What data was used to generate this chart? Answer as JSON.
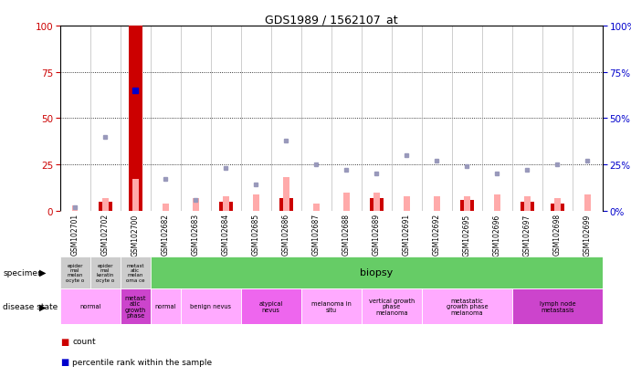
{
  "title": "GDS1989 / 1562107_at",
  "samples": [
    "GSM102701",
    "GSM102702",
    "GSM102700",
    "GSM102682",
    "GSM102683",
    "GSM102684",
    "GSM102685",
    "GSM102686",
    "GSM102687",
    "GSM102688",
    "GSM102689",
    "GSM102691",
    "GSM102692",
    "GSM102695",
    "GSM102696",
    "GSM102697",
    "GSM102698",
    "GSM102699"
  ],
  "count_values": [
    0,
    5,
    100,
    0,
    0,
    5,
    0,
    7,
    0,
    0,
    7,
    0,
    0,
    6,
    0,
    5,
    4,
    0
  ],
  "percentile_rank": [
    null,
    null,
    65,
    null,
    null,
    null,
    null,
    null,
    null,
    null,
    null,
    null,
    null,
    null,
    null,
    null,
    null,
    null
  ],
  "value_absent": [
    3,
    7,
    17,
    4,
    7,
    8,
    9,
    18,
    4,
    10,
    10,
    8,
    8,
    8,
    9,
    8,
    7,
    9
  ],
  "rank_absent": [
    2,
    40,
    null,
    17,
    6,
    23,
    14,
    38,
    25,
    22,
    20,
    30,
    27,
    24,
    20,
    22,
    25,
    27
  ],
  "disease_groups": [
    {
      "label": "normal",
      "start": 0,
      "end": 1,
      "color": "#ffaaff"
    },
    {
      "label": "metast\natic\ngrowth\nphase",
      "start": 2,
      "end": 2,
      "color": "#cc44cc"
    },
    {
      "label": "normal",
      "start": 3,
      "end": 3,
      "color": "#ffaaff"
    },
    {
      "label": "benign nevus",
      "start": 4,
      "end": 5,
      "color": "#ffaaff"
    },
    {
      "label": "atypical\nnevus",
      "start": 6,
      "end": 7,
      "color": "#ee66ee"
    },
    {
      "label": "melanoma in\nsitu",
      "start": 8,
      "end": 9,
      "color": "#ffaaff"
    },
    {
      "label": "vertical growth\nphase\nmelanoma",
      "start": 10,
      "end": 11,
      "color": "#ffaaff"
    },
    {
      "label": "metastatic\ngrowth phase\nmelanoma",
      "start": 12,
      "end": 14,
      "color": "#ffaaff"
    },
    {
      "label": "lymph node\nmetastasis",
      "start": 15,
      "end": 17,
      "color": "#cc44cc"
    }
  ],
  "ylim": [
    0,
    100
  ],
  "y_ticks": [
    0,
    25,
    50,
    75,
    100
  ],
  "bg_color": "#ffffff",
  "bar_color_count": "#cc0000",
  "bar_color_value_absent": "#ffaaaa",
  "dot_color_percentile": "#0000cc",
  "dot_color_rank_absent": "#9999bb",
  "axis_color_left": "#cc0000",
  "axis_color_right": "#0000cc",
  "xtick_bg": "#cccccc",
  "spec_gray": "#cccccc",
  "spec_green": "#66cc66"
}
